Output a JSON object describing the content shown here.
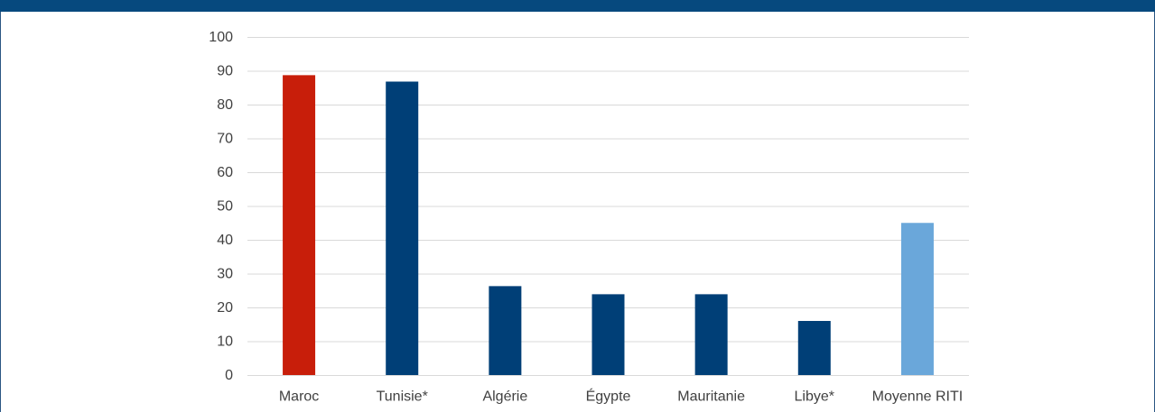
{
  "colors": {
    "header_bar": "#06497e",
    "highlight": "#c81e0a",
    "default": "#003f77",
    "average": "#6aa7da",
    "gridline": "#d9d9d9",
    "axis_text": "#404040"
  },
  "chart_data": {
    "type": "bar",
    "categories": [
      "Maroc",
      "Tunisie*",
      "Algérie",
      "Égypte",
      "Mauritanie",
      "Libye*",
      "Moyenne RITI"
    ],
    "values": [
      88.7,
      86.8,
      26.3,
      23.9,
      23.9,
      16.0,
      45.0
    ],
    "bar_colors": [
      "#c81e0a",
      "#003f77",
      "#003f77",
      "#003f77",
      "#003f77",
      "#003f77",
      "#6aa7da"
    ],
    "ylim": [
      0,
      100
    ],
    "yticks": [
      "0",
      "10",
      "20",
      "30",
      "40",
      "50",
      "60",
      "70",
      "80",
      "90",
      "100"
    ],
    "title": "",
    "xlabel": "",
    "ylabel": "",
    "grid": true,
    "legend": "none"
  }
}
